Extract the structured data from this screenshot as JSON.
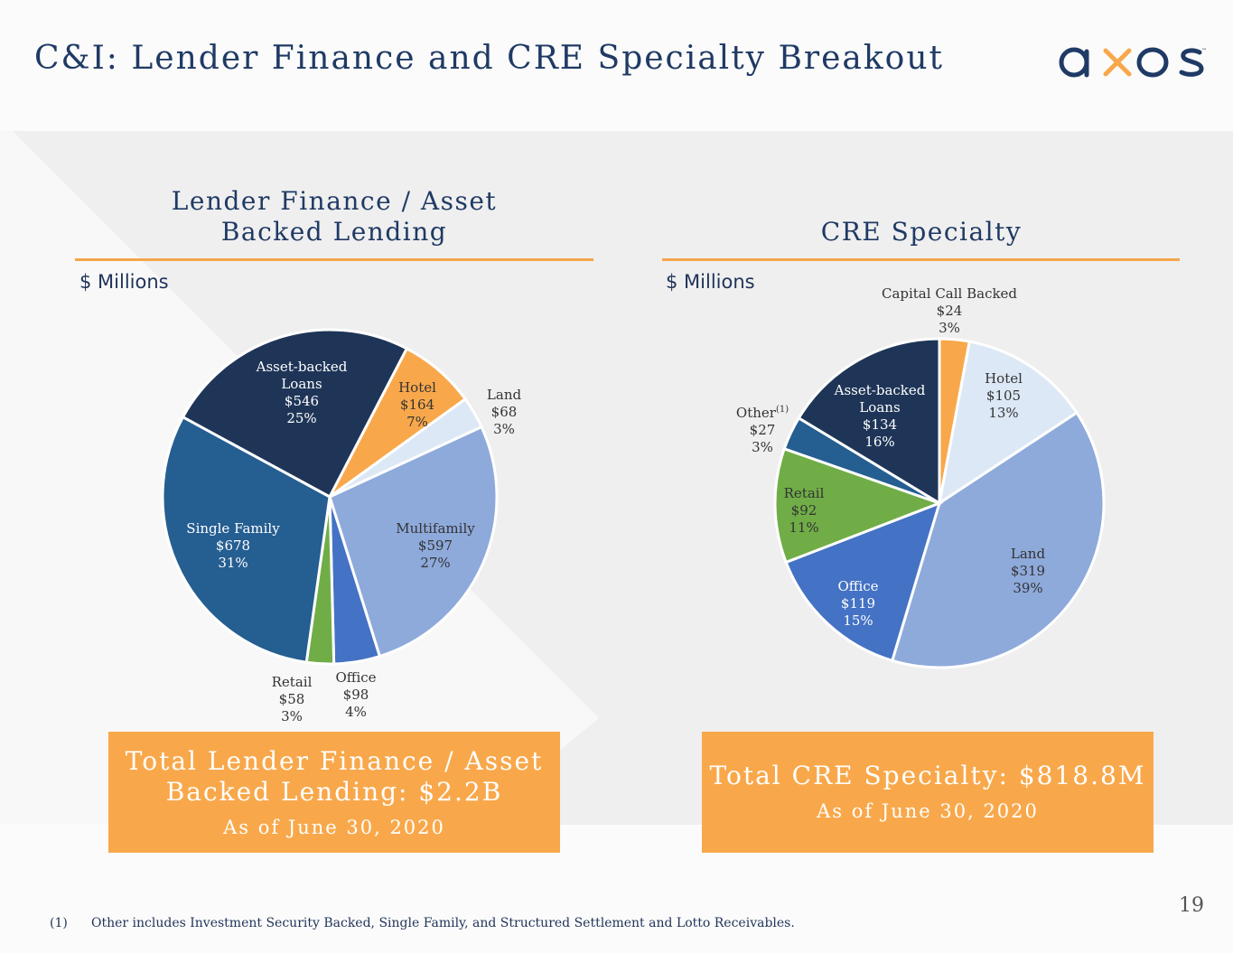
{
  "header": {
    "title": "C&I: Lender Finance and CRE Specialty Breakout",
    "logo_text": "axos",
    "logo_tm": "™"
  },
  "colors": {
    "navy": "#1f3a64",
    "accent_orange": "#f8a84b",
    "rule_orange": "#f5a54a"
  },
  "page_number": "19",
  "footnote": {
    "marker": "(1)",
    "text": "Other includes Investment Security Backed, Single Family, and Structured Settlement and Lotto Receivables."
  },
  "left_panel": {
    "title_line1": "Lender Finance /  Asset",
    "title_line2": "Backed Lending",
    "units": "$ Millions",
    "total_line1": "Total Lender Finance /  Asset",
    "total_line2": "Backed Lending: $2.2B",
    "as_of": "As of June 30, 2020"
  },
  "right_panel": {
    "title": "CRE Specialty",
    "units": "$ Millions",
    "total_line1": "Total CRE Specialty: $818.8M",
    "as_of": "As of June 30, 2020"
  },
  "chart_data": [
    {
      "type": "pie",
      "title": "Lender Finance / Asset Backed Lending",
      "units": "$ Millions",
      "slices": [
        {
          "name": "Asset-backed Loans",
          "label_lines": [
            "Asset-backed",
            "Loans"
          ],
          "value": 546,
          "value_label": "$546",
          "percent": "25%",
          "color": "#1f3558"
        },
        {
          "name": "Hotel",
          "label_lines": [
            "Hotel"
          ],
          "value": 164,
          "value_label": "$164",
          "percent": "7%",
          "color": "#f8a84b"
        },
        {
          "name": "Land",
          "label_lines": [
            "Land"
          ],
          "value": 68,
          "value_label": "$68",
          "percent": "3%",
          "color": "#dde8f6"
        },
        {
          "name": "Multifamily",
          "label_lines": [
            "Multifamily"
          ],
          "value": 597,
          "value_label": "$597",
          "percent": "27%",
          "color": "#8eaadb"
        },
        {
          "name": "Office",
          "label_lines": [
            "Office"
          ],
          "value": 98,
          "value_label": "$98",
          "percent": "4%",
          "color": "#4472c4"
        },
        {
          "name": "Retail",
          "label_lines": [
            "Retail"
          ],
          "value": 58,
          "value_label": "$58",
          "percent": "3%",
          "color": "#70ad47"
        },
        {
          "name": "Single Family",
          "label_lines": [
            "Single Family"
          ],
          "value": 678,
          "value_label": "$678",
          "percent": "31%",
          "color": "#255e91"
        }
      ]
    },
    {
      "type": "pie",
      "title": "CRE Specialty",
      "units": "$ Millions",
      "slices": [
        {
          "name": "Capital Call Backed",
          "label_lines": [
            "Capital Call Backed"
          ],
          "value": 24,
          "value_label": "$24",
          "percent": "3%",
          "color": "#f8a84b"
        },
        {
          "name": "Hotel",
          "label_lines": [
            "Hotel"
          ],
          "value": 105,
          "value_label": "$105",
          "percent": "13%",
          "color": "#dde8f6"
        },
        {
          "name": "Land",
          "label_lines": [
            "Land"
          ],
          "value": 319,
          "value_label": "$319",
          "percent": "39%",
          "color": "#8eaadb"
        },
        {
          "name": "Office",
          "label_lines": [
            "Office"
          ],
          "value": 119,
          "value_label": "$119",
          "percent": "15%",
          "color": "#4472c4"
        },
        {
          "name": "Retail",
          "label_lines": [
            "Retail"
          ],
          "value": 92,
          "value_label": "$92",
          "percent": "11%",
          "color": "#70ad47"
        },
        {
          "name": "Other",
          "label_lines": [
            "Other"
          ],
          "footnote_marker": "(1)",
          "value": 27,
          "value_label": "$27",
          "percent": "3%",
          "color": "#255e91"
        },
        {
          "name": "Asset-backed Loans",
          "label_lines": [
            "Asset-backed",
            "Loans"
          ],
          "value": 134,
          "value_label": "$134",
          "percent": "16%",
          "color": "#1f3558"
        }
      ]
    }
  ]
}
